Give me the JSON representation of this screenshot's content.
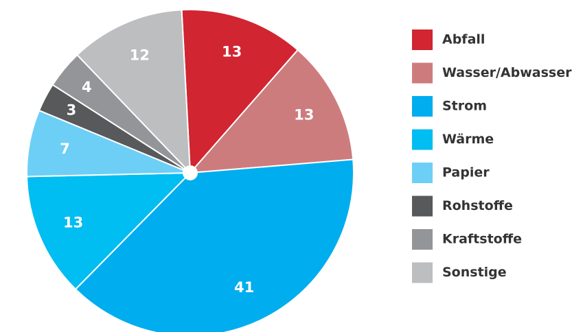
{
  "chart_data": {
    "type": "pie",
    "categories": [
      "Abfall",
      "Wasser/Abwasser",
      "Strom",
      "Wärme",
      "Papier",
      "Rohstoffe",
      "Kraftstoffe",
      "Sonstige"
    ],
    "values": [
      13,
      13,
      41,
      13,
      7,
      3,
      4,
      12
    ],
    "colors": [
      "#d12531",
      "#cd7c7e",
      "#00adee",
      "#00bdf2",
      "#6dcff6",
      "#58595b",
      "#939598",
      "#bcbec0"
    ],
    "legend": "right"
  }
}
